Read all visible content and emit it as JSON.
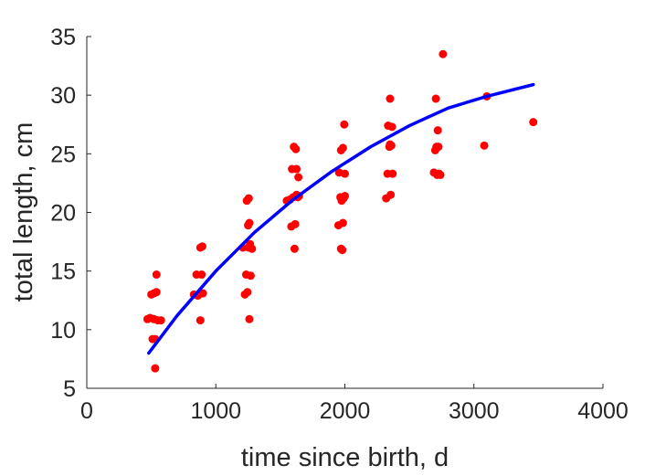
{
  "chart_data": {
    "type": "scatter",
    "title": "",
    "xlabel": "time since birth, d",
    "ylabel": "total length, cm",
    "xlim": [
      0,
      4000
    ],
    "ylim": [
      5,
      35
    ],
    "xticks": [
      "0",
      "1000",
      "2000",
      "3000",
      "4000"
    ],
    "yticks": [
      "5",
      "10",
      "15",
      "20",
      "25",
      "30",
      "35"
    ],
    "grid": false,
    "legend": "none",
    "series": [
      {
        "type": "scatter",
        "color": "#ff0000",
        "points": [
          [
            470,
            10.9
          ],
          [
            490,
            11.0
          ],
          [
            500,
            13.0
          ],
          [
            510,
            9.2
          ],
          [
            520,
            13.1
          ],
          [
            520,
            10.9
          ],
          [
            530,
            6.7
          ],
          [
            530,
            9.2
          ],
          [
            540,
            14.7
          ],
          [
            540,
            13.2
          ],
          [
            550,
            10.8
          ],
          [
            575,
            10.8
          ],
          [
            830,
            13.0
          ],
          [
            850,
            14.7
          ],
          [
            860,
            12.9
          ],
          [
            870,
            13.0
          ],
          [
            880,
            17.0
          ],
          [
            880,
            10.8
          ],
          [
            890,
            14.7
          ],
          [
            895,
            17.1
          ],
          [
            900,
            13.1
          ],
          [
            1210,
            17.0
          ],
          [
            1225,
            13.0
          ],
          [
            1235,
            14.7
          ],
          [
            1240,
            21.0
          ],
          [
            1245,
            13.2
          ],
          [
            1250,
            18.9
          ],
          [
            1255,
            17.0
          ],
          [
            1255,
            21.2
          ],
          [
            1260,
            19.1
          ],
          [
            1260,
            10.9
          ],
          [
            1265,
            17.3
          ],
          [
            1270,
            14.6
          ],
          [
            1280,
            16.9
          ],
          [
            1550,
            21.0
          ],
          [
            1575,
            21.1
          ],
          [
            1585,
            18.8
          ],
          [
            1590,
            23.7
          ],
          [
            1600,
            21.3
          ],
          [
            1605,
            25.6
          ],
          [
            1610,
            16.9
          ],
          [
            1615,
            19.0
          ],
          [
            1620,
            25.4
          ],
          [
            1625,
            21.5
          ],
          [
            1625,
            23.7
          ],
          [
            1635,
            21.3
          ],
          [
            1640,
            23.0
          ],
          [
            1645,
            21.4
          ],
          [
            1950,
            18.9
          ],
          [
            1955,
            23.4
          ],
          [
            1965,
            21.3
          ],
          [
            1970,
            16.9
          ],
          [
            1970,
            25.3
          ],
          [
            1975,
            21.0
          ],
          [
            1980,
            16.8
          ],
          [
            1985,
            19.1
          ],
          [
            1985,
            25.5
          ],
          [
            1990,
            21.2
          ],
          [
            1995,
            27.5
          ],
          [
            2000,
            23.3
          ],
          [
            2000,
            21.4
          ],
          [
            2320,
            21.2
          ],
          [
            2330,
            23.3
          ],
          [
            2335,
            27.4
          ],
          [
            2345,
            25.6
          ],
          [
            2350,
            25.8
          ],
          [
            2350,
            29.7
          ],
          [
            2355,
            21.5
          ],
          [
            2360,
            25.7
          ],
          [
            2365,
            27.3
          ],
          [
            2370,
            23.3
          ],
          [
            2690,
            23.4
          ],
          [
            2700,
            25.3
          ],
          [
            2705,
            29.7
          ],
          [
            2710,
            25.6
          ],
          [
            2715,
            23.2
          ],
          [
            2720,
            27.0
          ],
          [
            2725,
            25.6
          ],
          [
            2730,
            23.3
          ],
          [
            2740,
            23.2
          ],
          [
            2760,
            33.5
          ],
          [
            3080,
            25.7
          ],
          [
            3100,
            29.9
          ],
          [
            3460,
            27.7
          ]
        ]
      },
      {
        "type": "line",
        "color": "#0000ff",
        "x": [
          480,
          700,
          1000,
          1300,
          1600,
          1900,
          2200,
          2500,
          2800,
          3100,
          3460
        ],
        "y": [
          8.0,
          11.2,
          15.0,
          18.3,
          21.1,
          23.5,
          25.6,
          27.4,
          28.9,
          29.9,
          30.9
        ]
      }
    ]
  }
}
